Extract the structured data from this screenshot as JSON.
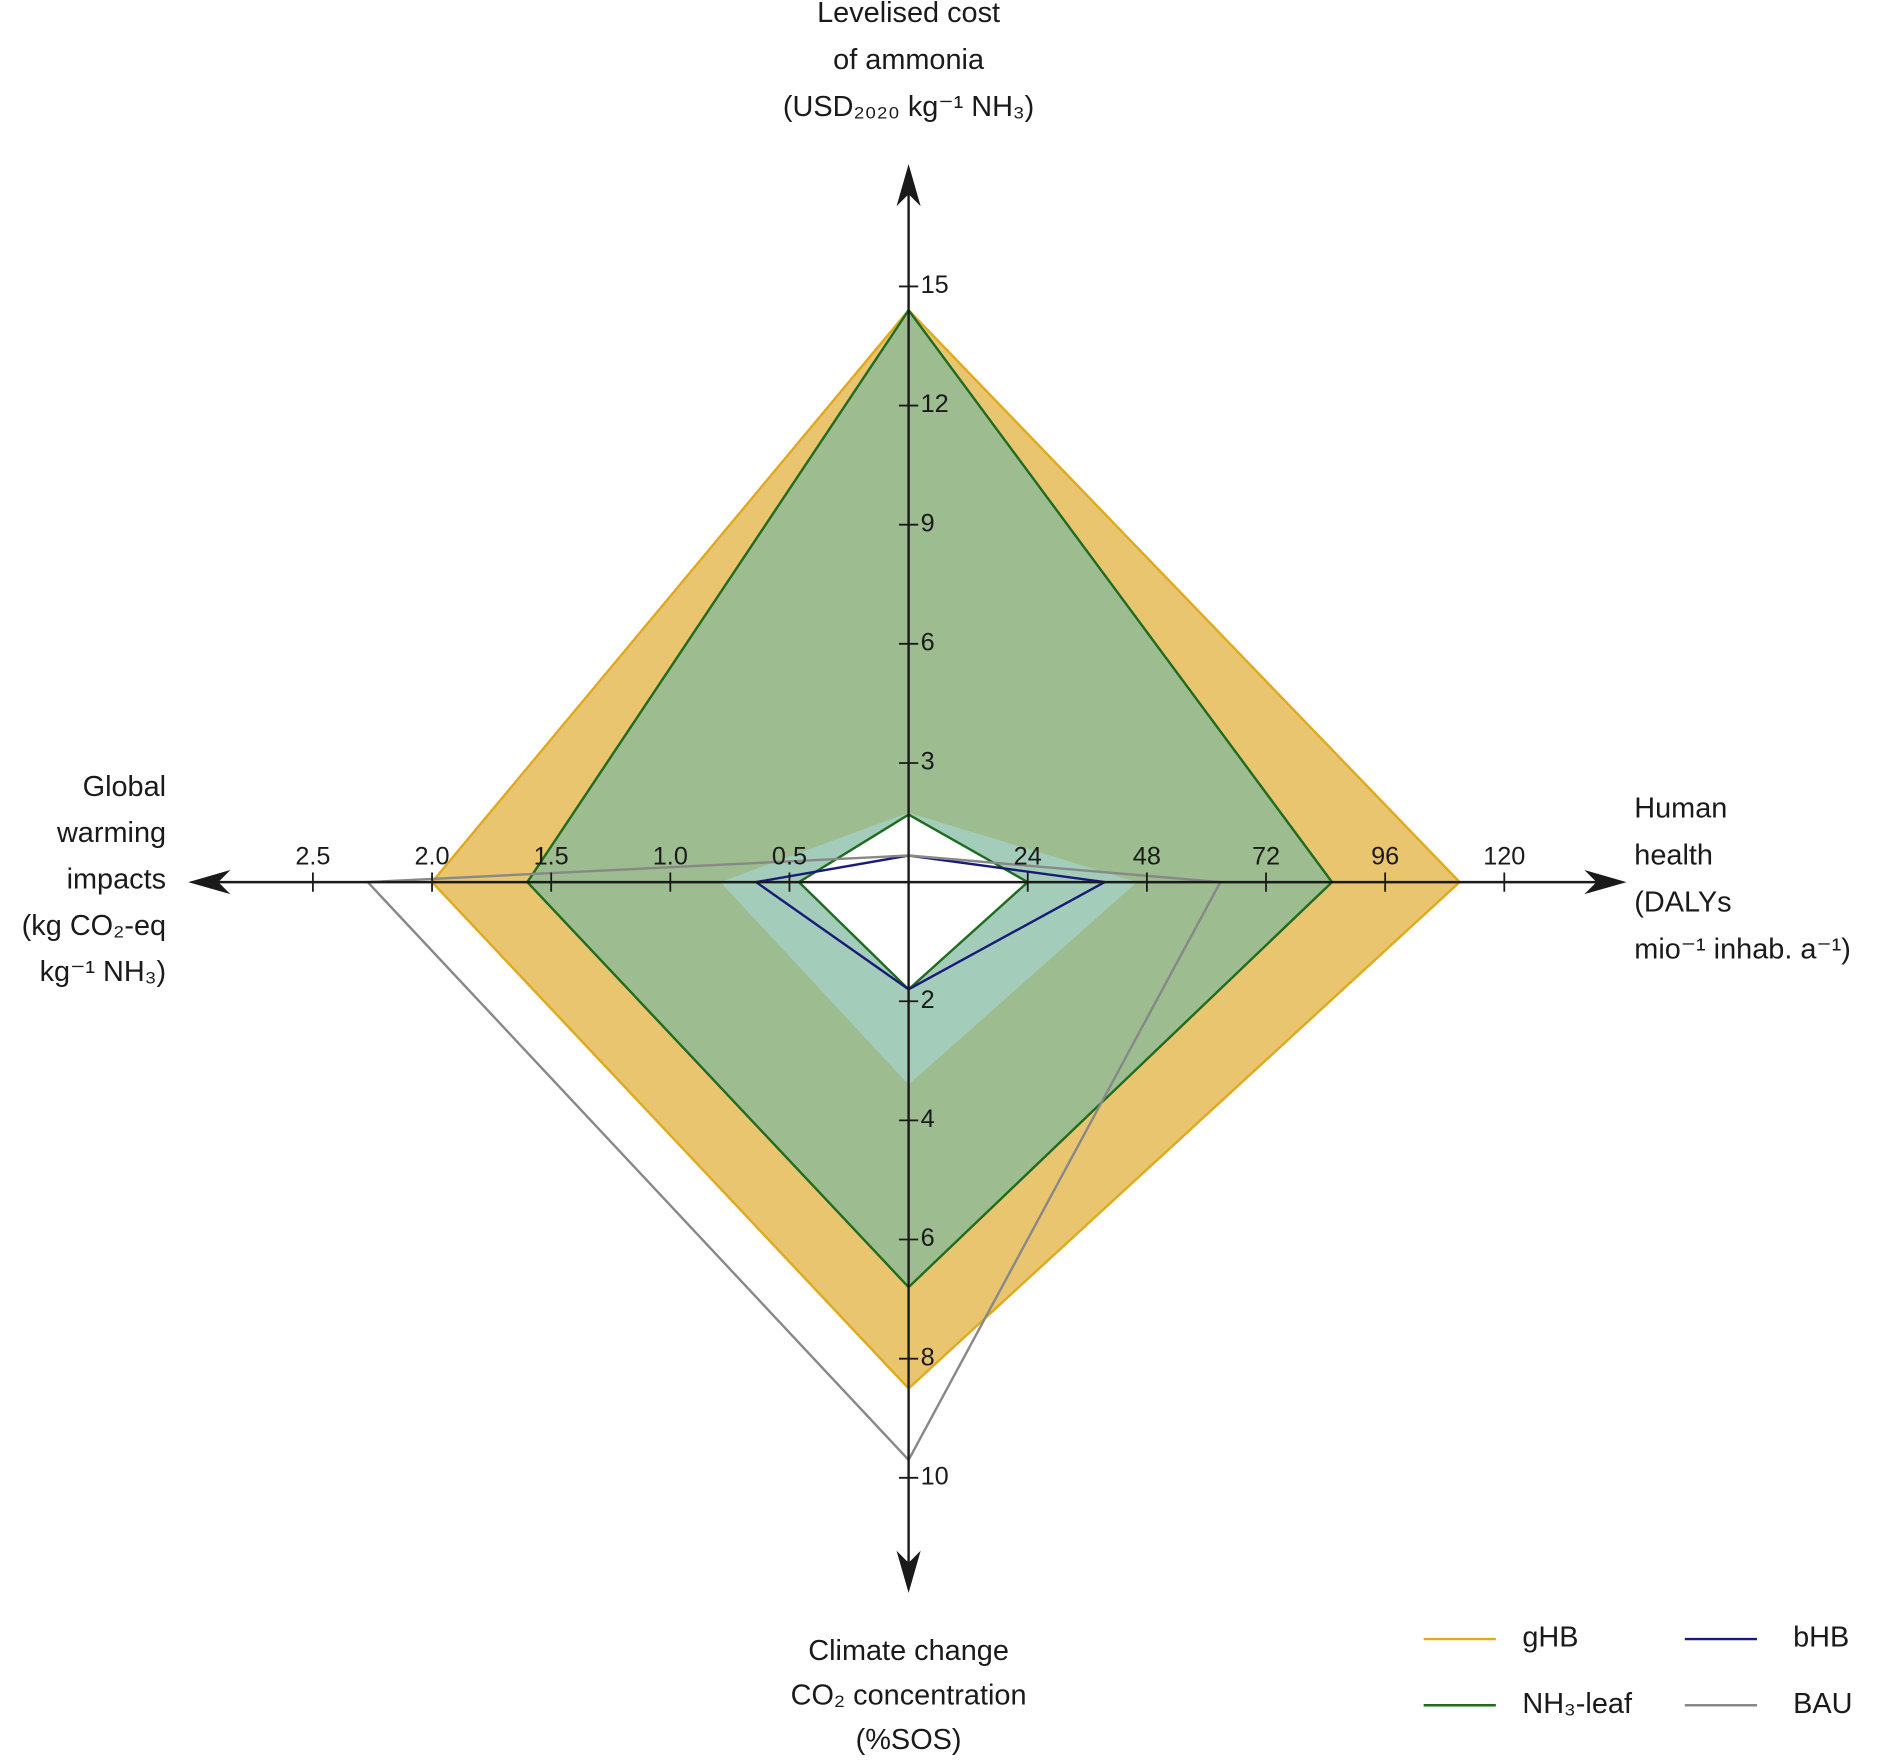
{
  "chart_data": {
    "type": "radar",
    "axes": [
      {
        "direction": "up",
        "title_lines": [
          "Levelised cost",
          "of ammonia",
          "(USD₂₀₂₀ kg⁻¹ NH₃)"
        ],
        "lim": [
          0,
          15
        ],
        "ticks": [
          3,
          6,
          9,
          12,
          15
        ]
      },
      {
        "direction": "right",
        "title_lines": [
          "Human",
          "health",
          "(DALYs",
          "mio⁻¹ inhab. a⁻¹)"
        ],
        "lim": [
          0,
          120
        ],
        "ticks": [
          24,
          48,
          72,
          96,
          120
        ]
      },
      {
        "direction": "down",
        "title_lines": [
          "Climate change",
          "CO₂ concentration",
          "(%SOS)"
        ],
        "lim": [
          0,
          10
        ],
        "ticks": [
          2,
          4,
          6,
          8,
          10
        ]
      },
      {
        "direction": "left",
        "title_lines": [
          "Global",
          "warming",
          "impacts",
          "(kg CO₂-eq",
          "kg⁻¹ NH₃)"
        ],
        "lim": [
          0,
          2.5
        ],
        "ticks": [
          0.5,
          {
            "value": 1,
            "label": "1.0"
          },
          1.5,
          {
            "value": 2,
            "label": "2.0"
          },
          2.5
        ]
      }
    ],
    "series": [
      {
        "name": "gHB",
        "color": "#e0a91e",
        "fill": "#e0ac33",
        "values": [
          14.4,
          111,
          8.5,
          2.0
        ],
        "lower": [
          1.75,
          46,
          3.4,
          0.79
        ],
        "lower_line": false
      },
      {
        "name": "NH₃-leaf",
        "color": "#1f6b1f",
        "fill": "#7cb89c",
        "values": [
          14.4,
          85.3,
          6.8,
          1.6
        ],
        "lower": [
          1.7,
          24,
          1.8,
          0.46
        ],
        "lower_line": true
      },
      {
        "name": "bHB",
        "color": "#1a1a78",
        "values": [
          0.67,
          39.5,
          1.8,
          0.64
        ]
      },
      {
        "name": "BAU",
        "color": "#888888",
        "values": [
          0.67,
          62.8,
          9.7,
          2.27
        ]
      }
    ]
  }
}
